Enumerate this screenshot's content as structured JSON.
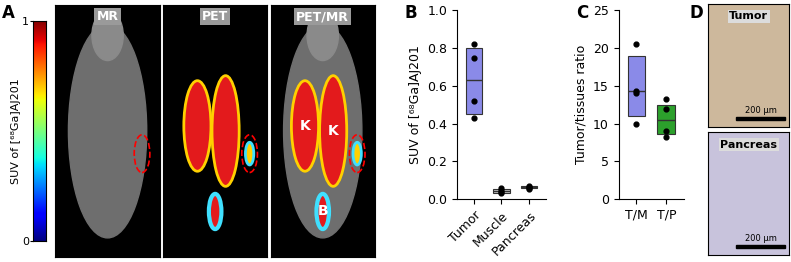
{
  "panel_labels": [
    "A",
    "B",
    "C",
    "D"
  ],
  "panel_a": {
    "images": [
      "MR",
      "PET",
      "PET/MR"
    ],
    "colorbar": {
      "label": "SUV of [⁶⁸Ga]AJ201",
      "lim": [
        0,
        1
      ],
      "ticks": [
        0,
        1
      ]
    },
    "annotations": [
      "K",
      "K",
      "B"
    ]
  },
  "chart_data": [
    {
      "type": "box",
      "ylabel": "SUV of [⁶⁸Ga]AJ201",
      "categories": [
        "Tumor",
        "Muscle",
        "Pancreas"
      ],
      "colors": [
        "#8a8ae8",
        "#c8c8c8",
        "#2ca02c"
      ],
      "points": [
        [
          0.82,
          0.75,
          0.52,
          0.43
        ],
        [
          0.06,
          0.05,
          0.04,
          0.03
        ],
        [
          0.07,
          0.065,
          0.06,
          0.055
        ]
      ],
      "box": [
        [
          0.45,
          0.63,
          0.8
        ],
        [
          0.035,
          0.045,
          0.055
        ],
        [
          0.057,
          0.062,
          0.067
        ]
      ],
      "ylim": [
        0,
        1
      ],
      "yticks": [
        {
          "value": 0,
          "label": "0.0"
        },
        {
          "value": 0.2,
          "label": "0.2"
        },
        {
          "value": 0.4,
          "label": "0.4"
        },
        {
          "value": 0.6,
          "label": "0.6"
        },
        {
          "value": 0.8,
          "label": "0.8"
        },
        {
          "value": 1.0,
          "label": "1.0"
        }
      ]
    },
    {
      "type": "box",
      "ylabel": "Tumor/tissues ratio",
      "categories": [
        "T/M",
        "T/P"
      ],
      "colors": [
        "#8a8ae8",
        "#2ca02c"
      ],
      "points": [
        [
          20.5,
          14.3,
          14.0,
          10.0
        ],
        [
          13.3,
          12.0,
          9.0,
          8.2
        ]
      ],
      "box": [
        [
          11.0,
          14.3,
          19.0
        ],
        [
          8.6,
          10.5,
          12.5
        ]
      ],
      "ylim": [
        0,
        25
      ],
      "yticks": [
        0,
        5,
        10,
        15,
        20,
        25
      ]
    }
  ],
  "panel_d": {
    "images": [
      "Tumor",
      "Pancreas"
    ],
    "scale_bar": "200 µm"
  }
}
